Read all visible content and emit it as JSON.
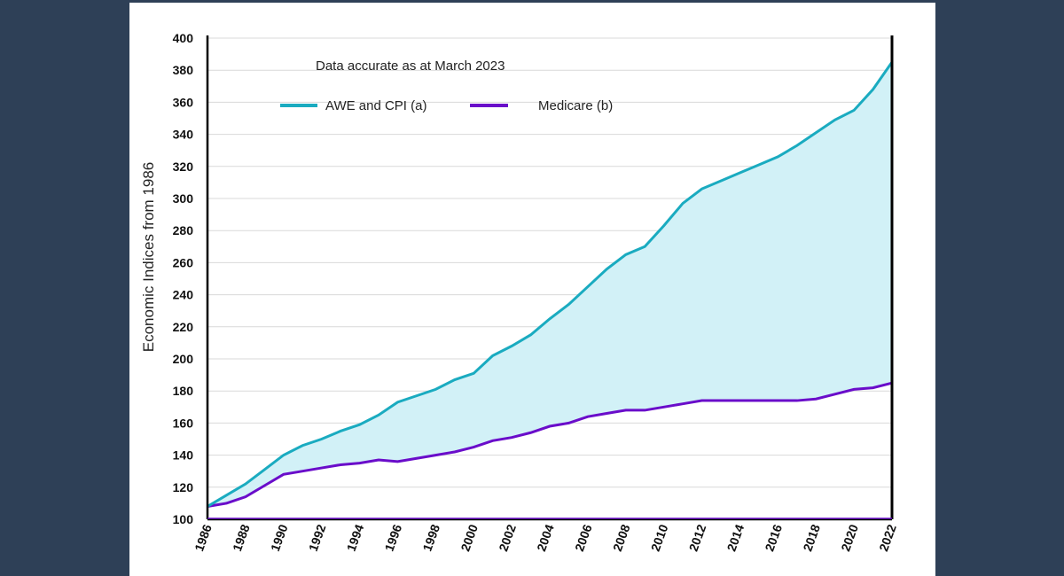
{
  "colors": {
    "background": "#2e4057",
    "card": "#ffffff",
    "awe": "#1aabc0",
    "medicare": "#6a0dca",
    "fill": "#d2f1f7",
    "grid": "#d9d9d9",
    "axis": "#000000"
  },
  "chart_data": {
    "type": "line",
    "note": "Data accurate as at March 2023",
    "ylabel": "Economic Indices from 1986",
    "xlabel": "",
    "ylim": [
      100,
      400
    ],
    "y_ticks": [
      100,
      120,
      140,
      160,
      180,
      200,
      220,
      240,
      260,
      280,
      300,
      320,
      340,
      360,
      380,
      400
    ],
    "x_ticks": [
      1986,
      1988,
      1990,
      1992,
      1994,
      1996,
      1998,
      2000,
      2002,
      2004,
      2006,
      2008,
      2010,
      2012,
      2014,
      2016,
      2018,
      2020,
      2022
    ],
    "grid": "horizontal",
    "legend_position": "top-left",
    "shaded_gap_between_series": true,
    "x": [
      1986,
      1987,
      1988,
      1989,
      1990,
      1991,
      1992,
      1993,
      1994,
      1995,
      1996,
      1997,
      1998,
      1999,
      2000,
      2001,
      2002,
      2003,
      2004,
      2005,
      2006,
      2007,
      2008,
      2009,
      2010,
      2011,
      2012,
      2013,
      2014,
      2015,
      2016,
      2017,
      2018,
      2019,
      2020,
      2021,
      2022
    ],
    "series": [
      {
        "name": "AWE and CPI (a)",
        "values": [
          108,
          115,
          122,
          131,
          140,
          146,
          150,
          155,
          159,
          165,
          173,
          177,
          181,
          187,
          191,
          202,
          208,
          215,
          225,
          234,
          245,
          256,
          265,
          270,
          283,
          297,
          306,
          311,
          316,
          321,
          326,
          333,
          341,
          349,
          355,
          368,
          385
        ]
      },
      {
        "name": "Medicare (b)",
        "values": [
          108,
          110,
          114,
          121,
          128,
          130,
          132,
          134,
          135,
          137,
          136,
          138,
          140,
          142,
          145,
          149,
          151,
          154,
          158,
          160,
          164,
          166,
          168,
          168,
          170,
          172,
          174,
          174,
          174,
          174,
          174,
          174,
          175,
          178,
          181,
          182,
          185
        ]
      }
    ]
  }
}
